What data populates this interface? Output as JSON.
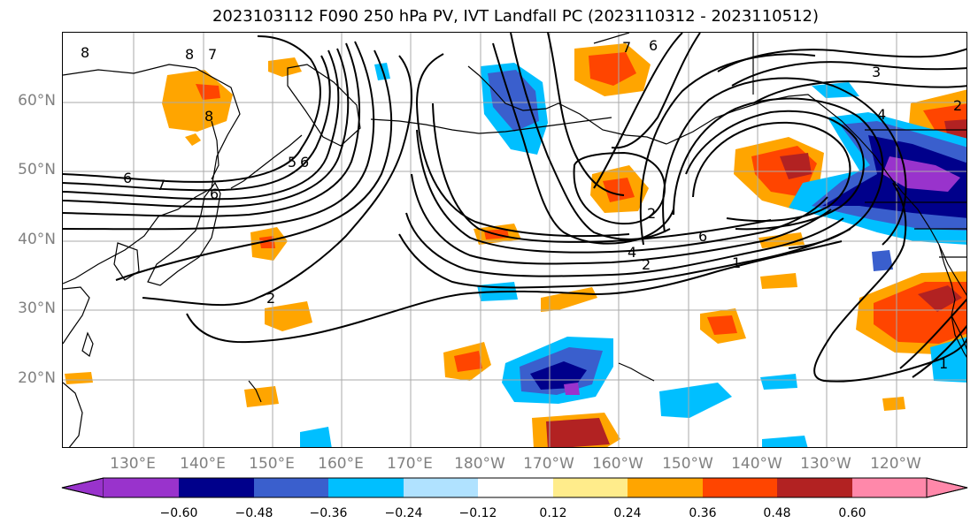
{
  "title": "2023103112 F090 250 hPa PV, IVT Landfall PC (2023110312 - 2023110512)",
  "lat_labels": [
    "60°N",
    "50°N",
    "40°N",
    "30°N",
    "20°N"
  ],
  "lon_labels": [
    "130°E",
    "140°E",
    "150°E",
    "160°E",
    "170°E",
    "180°W",
    "170°W",
    "160°W",
    "150°W",
    "140°W",
    "130°W",
    "120°W"
  ],
  "colorbar": {
    "ticks": [
      "−0.60",
      "−0.48",
      "−0.36",
      "−0.24",
      "−0.12",
      "0.12",
      "0.24",
      "0.36",
      "0.48",
      "0.60"
    ],
    "colors": [
      "#9933cc",
      "#00008b",
      "#3a5fcd",
      "#00bfff",
      "#b0e2ff",
      "#ffffff",
      "#ffec8b",
      "#ffa500",
      "#ff4500",
      "#b22222",
      "#ff88aa"
    ],
    "extend": "both"
  },
  "contour_labels": [
    "8",
    "8",
    "7",
    "8",
    "6",
    "7",
    "6",
    "5",
    "6",
    "2",
    "7",
    "6",
    "4",
    "2",
    "1",
    "6",
    "3",
    "2",
    "4",
    "2",
    "1"
  ],
  "map": {
    "projection": "cylindrical",
    "lon_range": [
      "120°E",
      "125°W"
    ],
    "lat_range": [
      "10°N",
      "70°N"
    ],
    "gridlines": true,
    "coastlines": true,
    "filled_field": "IVT landfall PC",
    "contour_field": "250 hPa PV"
  }
}
